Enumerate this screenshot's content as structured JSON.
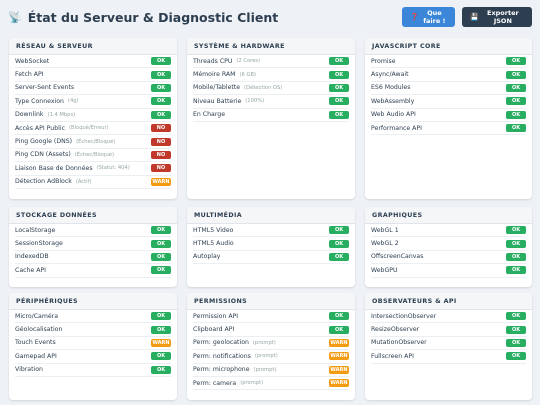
{
  "header": {
    "title": "État du Serveur & Diagnostic Client",
    "help_label": "Que faire !",
    "export_label": "Exporter JSON"
  },
  "colors": {
    "ok": "#27ae60",
    "no": "#c0392b",
    "warn": "#f39c12",
    "help_button": "#3b86d8",
    "export_button": "#2c3e50"
  },
  "sections": [
    {
      "id": "reseau",
      "title": "RÉSEAU & SERVEUR",
      "rows": [
        {
          "label": "WebSocket",
          "detail": "",
          "status": "OK",
          "level": "ok"
        },
        {
          "label": "Fetch API",
          "detail": "",
          "status": "OK",
          "level": "ok"
        },
        {
          "label": "Server-Sent Events",
          "detail": "",
          "status": "OK",
          "level": "ok"
        },
        {
          "label": "Type Connexion",
          "detail": "(4g)",
          "status": "OK",
          "level": "ok"
        },
        {
          "label": "Downlink",
          "detail": "(1.4 Mbps)",
          "status": "OK",
          "level": "ok"
        },
        {
          "label": "Accès API Public",
          "detail": "(Bloqué/Erreur)",
          "status": "NO",
          "level": "no"
        },
        {
          "label": "Ping Google (DNS)",
          "detail": "(Échec/Bloqué)",
          "status": "NO",
          "level": "no"
        },
        {
          "label": "Ping CDN (Assets)",
          "detail": "(Échec/Bloqué)",
          "status": "NO",
          "level": "no"
        },
        {
          "label": "Liaison Base de Données",
          "detail": "(Statut: 404)",
          "status": "NO",
          "level": "no"
        },
        {
          "label": "Détection AdBlock",
          "detail": "(Actif)",
          "status": "WARN",
          "level": "warn"
        }
      ]
    },
    {
      "id": "systeme",
      "title": "SYSTÈME & HARDWARE",
      "rows": [
        {
          "label": "Threads CPU",
          "detail": "(2 Cores)",
          "status": "OK",
          "level": "ok"
        },
        {
          "label": "Mémoire RAM",
          "detail": "(6 GB)",
          "status": "OK",
          "level": "ok"
        },
        {
          "label": "Mobile/Tablette",
          "detail": "(Détection OS)",
          "status": "OK",
          "level": "ok"
        },
        {
          "label": "Niveau Batterie",
          "detail": "(100%)",
          "status": "OK",
          "level": "ok"
        },
        {
          "label": "En Charge",
          "detail": "",
          "status": "OK",
          "level": "ok"
        }
      ]
    },
    {
      "id": "javascript",
      "title": "JAVASCRIPT CORE",
      "rows": [
        {
          "label": "Promise",
          "detail": "",
          "status": "OK",
          "level": "ok"
        },
        {
          "label": "Async/Await",
          "detail": "",
          "status": "OK",
          "level": "ok"
        },
        {
          "label": "ES6 Modules",
          "detail": "",
          "status": "OK",
          "level": "ok"
        },
        {
          "label": "WebAssembly",
          "detail": "",
          "status": "OK",
          "level": "ok"
        },
        {
          "label": "Web Audio API",
          "detail": "",
          "status": "OK",
          "level": "ok"
        },
        {
          "label": "Performance API",
          "detail": "",
          "status": "OK",
          "level": "ok"
        }
      ]
    },
    {
      "id": "stockage",
      "title": "STOCKAGE DONNÉES",
      "rows": [
        {
          "label": "LocalStorage",
          "detail": "",
          "status": "OK",
          "level": "ok"
        },
        {
          "label": "SessionStorage",
          "detail": "",
          "status": "OK",
          "level": "ok"
        },
        {
          "label": "IndexedDB",
          "detail": "",
          "status": "OK",
          "level": "ok"
        },
        {
          "label": "Cache API",
          "detail": "",
          "status": "OK",
          "level": "ok"
        }
      ]
    },
    {
      "id": "multimedia",
      "title": "MULTIMÉDIA",
      "rows": [
        {
          "label": "HTML5 Video",
          "detail": "",
          "status": "OK",
          "level": "ok"
        },
        {
          "label": "HTML5 Audio",
          "detail": "",
          "status": "OK",
          "level": "ok"
        },
        {
          "label": "Autoplay",
          "detail": "",
          "status": "OK",
          "level": "ok"
        }
      ]
    },
    {
      "id": "graphiques",
      "title": "GRAPHIQUES",
      "rows": [
        {
          "label": "WebGL 1",
          "detail": "",
          "status": "OK",
          "level": "ok"
        },
        {
          "label": "WebGL 2",
          "detail": "",
          "status": "OK",
          "level": "ok"
        },
        {
          "label": "OffscreenCanvas",
          "detail": "",
          "status": "OK",
          "level": "ok"
        },
        {
          "label": "WebGPU",
          "detail": "",
          "status": "OK",
          "level": "ok"
        }
      ]
    },
    {
      "id": "peripheriques",
      "title": "PÉRIPHÉRIQUES",
      "rows": [
        {
          "label": "Micro/Caméra",
          "detail": "",
          "status": "OK",
          "level": "ok"
        },
        {
          "label": "Géolocalisation",
          "detail": "",
          "status": "OK",
          "level": "ok"
        },
        {
          "label": "Touch Events",
          "detail": "",
          "status": "WARN",
          "level": "warn"
        },
        {
          "label": "Gamepad API",
          "detail": "",
          "status": "OK",
          "level": "ok"
        },
        {
          "label": "Vibration",
          "detail": "",
          "status": "OK",
          "level": "ok"
        }
      ]
    },
    {
      "id": "permissions",
      "title": "PERMISSIONS",
      "rows": [
        {
          "label": "Permission API",
          "detail": "",
          "status": "OK",
          "level": "ok"
        },
        {
          "label": "Clipboard API",
          "detail": "",
          "status": "OK",
          "level": "ok"
        },
        {
          "label": "Perm: geolocation",
          "detail": "(prompt)",
          "status": "WARN",
          "level": "warn"
        },
        {
          "label": "Perm: notifications",
          "detail": "(prompt)",
          "status": "WARN",
          "level": "warn"
        },
        {
          "label": "Perm: microphone",
          "detail": "(prompt)",
          "status": "WARN",
          "level": "warn"
        },
        {
          "label": "Perm: camera",
          "detail": "(prompt)",
          "status": "WARN",
          "level": "warn"
        }
      ]
    },
    {
      "id": "observateurs",
      "title": "OBSERVATEURS & API",
      "rows": [
        {
          "label": "IntersectionObserver",
          "detail": "",
          "status": "OK",
          "level": "ok"
        },
        {
          "label": "ResizeObserver",
          "detail": "",
          "status": "OK",
          "level": "ok"
        },
        {
          "label": "MutationObserver",
          "detail": "",
          "status": "OK",
          "level": "ok"
        },
        {
          "label": "Fullscreen API",
          "detail": "",
          "status": "OK",
          "level": "ok"
        }
      ]
    }
  ]
}
